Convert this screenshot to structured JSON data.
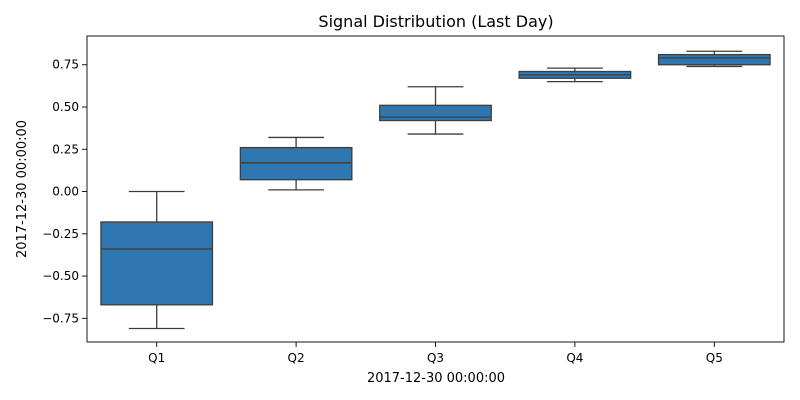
{
  "chart_data": {
    "type": "box",
    "title": "Signal Distribution (Last Day)",
    "xlabel": "2017-12-30 00:00:00",
    "ylabel": "2017-12-30 00:00:00",
    "categories": [
      "Q1",
      "Q2",
      "Q3",
      "Q4",
      "Q5"
    ],
    "ylim": [
      -0.89,
      0.92
    ],
    "yticks": [
      -0.75,
      -0.5,
      -0.25,
      0.0,
      0.25,
      0.5,
      0.75
    ],
    "ytick_labels": [
      "−0.75",
      "−0.50",
      "−0.25",
      "0.00",
      "0.25",
      "0.50",
      "0.75"
    ],
    "grid": false,
    "box_color": "#2f77b0",
    "line_color": "#3d3d3d",
    "boxes": [
      {
        "category": "Q1",
        "whisker_low": -0.81,
        "q1": -0.67,
        "median": -0.34,
        "q3": -0.18,
        "whisker_high": 0.0
      },
      {
        "category": "Q2",
        "whisker_low": 0.01,
        "q1": 0.07,
        "median": 0.17,
        "q3": 0.26,
        "whisker_high": 0.32
      },
      {
        "category": "Q3",
        "whisker_low": 0.34,
        "q1": 0.42,
        "median": 0.44,
        "q3": 0.51,
        "whisker_high": 0.62
      },
      {
        "category": "Q4",
        "whisker_low": 0.65,
        "q1": 0.67,
        "median": 0.69,
        "q3": 0.71,
        "whisker_high": 0.73
      },
      {
        "category": "Q5",
        "whisker_low": 0.74,
        "q1": 0.75,
        "median": 0.79,
        "q3": 0.81,
        "whisker_high": 0.83
      }
    ]
  }
}
